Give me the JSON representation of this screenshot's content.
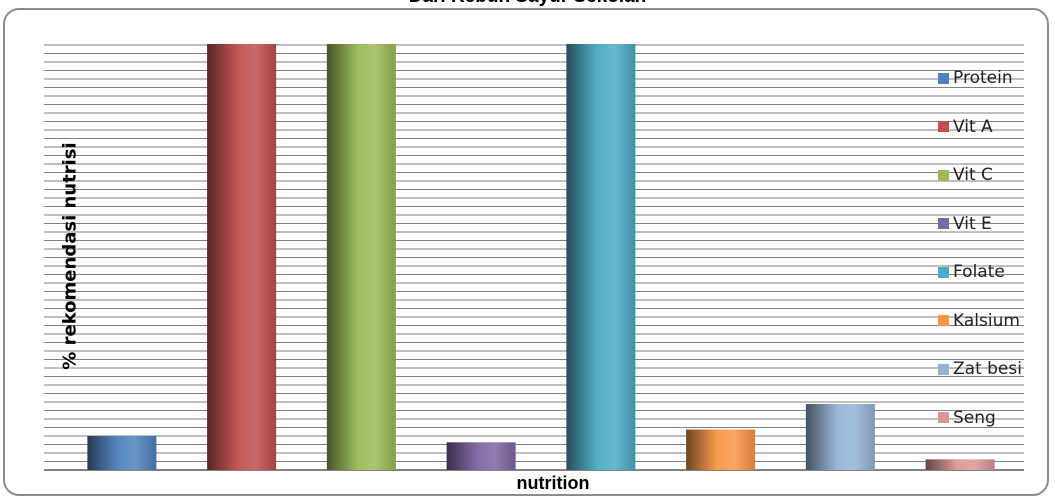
{
  "chart_data": {
    "type": "bar",
    "title": "Dari Kebun Sayur Sekolah",
    "xlabel": "nutrition",
    "ylabel": "% rekomendasi nutrisi",
    "ylim": [
      0,
      100
    ],
    "grid": true,
    "legend_position": "right",
    "series": [
      {
        "name": "Protein",
        "value": 8,
        "color": "#4f81bd"
      },
      {
        "name": "Vit A",
        "value": 100,
        "color": "#c0504d"
      },
      {
        "name": "Vit C",
        "value": 100,
        "color": "#9bbb59"
      },
      {
        "name": "Vit E",
        "value": 6.5,
        "color": "#8064a2"
      },
      {
        "name": "Folate",
        "value": 100,
        "color": "#4bacc6"
      },
      {
        "name": "Kalsium",
        "value": 9.5,
        "color": "#f79646"
      },
      {
        "name": "Zat besi",
        "value": 15.5,
        "color": "#95b3d7"
      },
      {
        "name": "Seng",
        "value": 2.5,
        "color": "#d99694"
      }
    ]
  }
}
